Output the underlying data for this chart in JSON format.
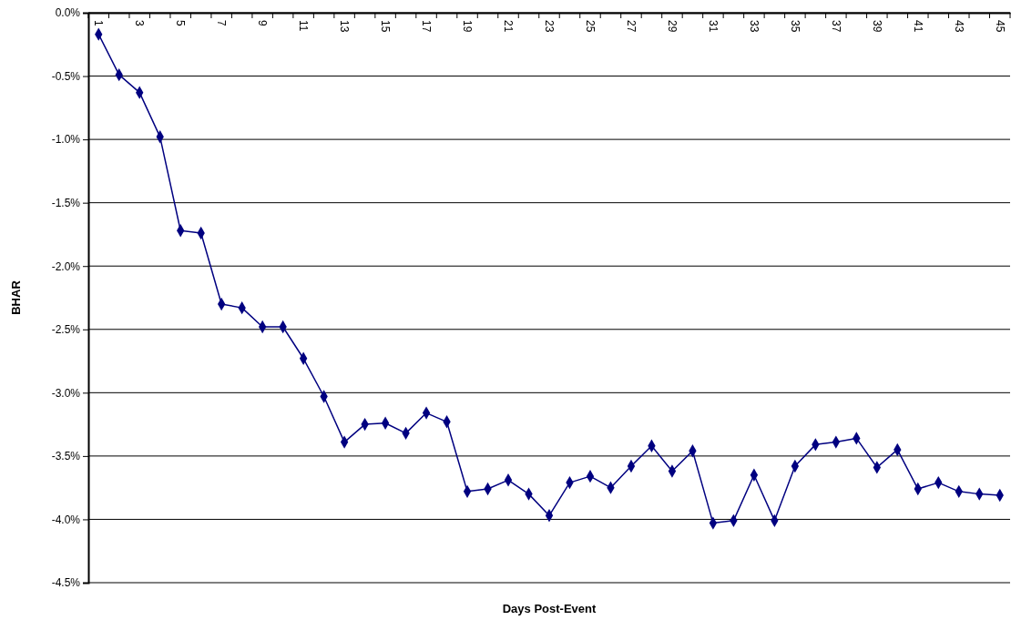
{
  "chart_data": {
    "type": "line",
    "xlabel": "Days Post-Event",
    "ylabel": "BHAR",
    "categories": [
      "1",
      null,
      "3",
      null,
      "5",
      null,
      "7",
      null,
      "9",
      null,
      "11",
      null,
      "13",
      null,
      "15",
      null,
      "17",
      null,
      "19",
      null,
      "21",
      null,
      "23",
      null,
      "25",
      null,
      "27",
      null,
      "29",
      null,
      "31",
      null,
      "33",
      null,
      "35",
      null,
      "37",
      null,
      "39",
      null,
      "41",
      null,
      "43",
      null,
      "45"
    ],
    "series": [
      {
        "color": "#000080",
        "values": [
          -0.17,
          -0.49,
          -0.63,
          -0.98,
          -1.72,
          -1.74,
          -2.3,
          -2.33,
          -2.48,
          -2.48,
          -2.73,
          -3.03,
          -3.39,
          -3.25,
          -3.24,
          -3.32,
          -3.16,
          -3.23,
          -3.78,
          -3.76,
          -3.69,
          -3.8,
          -3.97,
          -3.71,
          -3.66,
          -3.75,
          -3.58,
          -3.42,
          -3.62,
          -3.46,
          -4.03,
          -4.01,
          -3.65,
          -4.01,
          -3.58,
          -3.41,
          -3.39,
          -3.36,
          -3.59,
          -3.45,
          -3.76,
          -3.71,
          -3.78,
          -3.8,
          -3.81
        ]
      }
    ],
    "ylim": [
      -4.5,
      0
    ],
    "yticks": [
      {
        "value": 0,
        "label": "0.0%"
      },
      {
        "value": -0.5,
        "label": "-0.5%"
      },
      {
        "value": -1,
        "label": "-1.0%"
      },
      {
        "value": -1.5,
        "label": "-1.5%"
      },
      {
        "value": -2,
        "label": "-2.0%"
      },
      {
        "value": -2.5,
        "label": "-2.5%"
      },
      {
        "value": -3,
        "label": "-3.0%"
      },
      {
        "value": -3.5,
        "label": "-3.5%"
      },
      {
        "value": -4,
        "label": "-4.0%"
      },
      {
        "value": -4.5,
        "label": "-4.5%"
      }
    ],
    "grid": "y",
    "marker": "diamond",
    "line_style": "solid"
  }
}
